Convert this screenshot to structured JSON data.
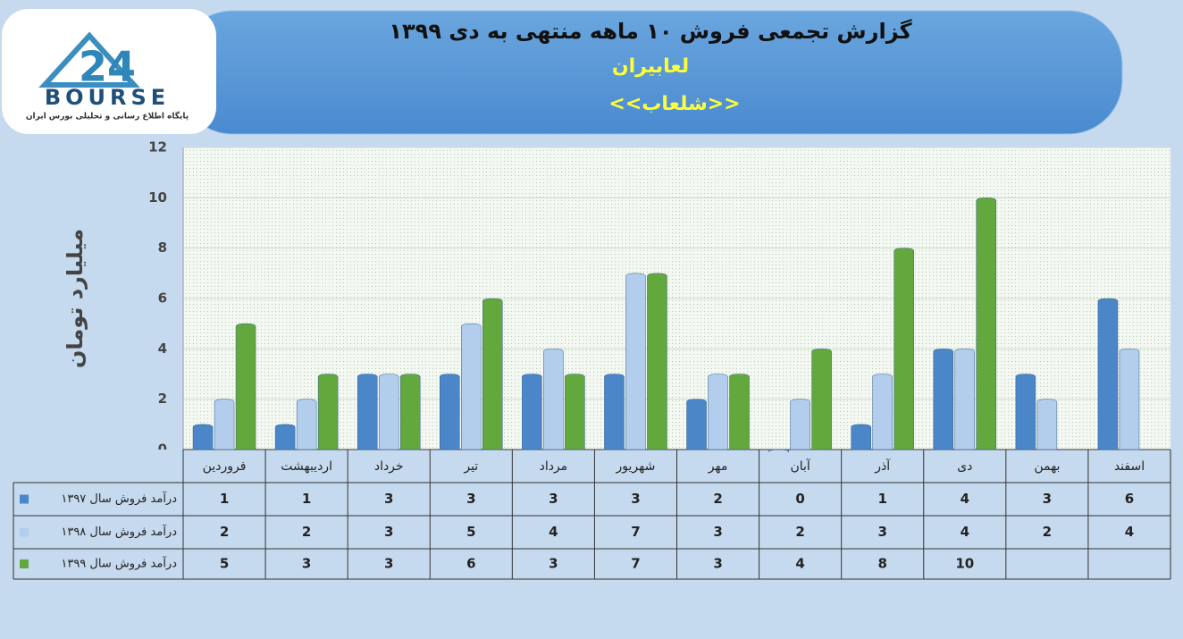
{
  "logo": {
    "mark": "24",
    "name": "BOURSE",
    "tagline": "پایگاه اطلاع رسانی و تحلیلی بورس ایران"
  },
  "chart_data": {
    "type": "bar",
    "title": "گزارش تجمعی فروش ۱۰ ماهه منتهی به دی ۱۳۹۹",
    "subtitle": "لعابیران",
    "subtitle2": "<<شلعاب>>",
    "y_label": "میلیارد تومان",
    "categories": [
      "فروردین",
      "اردیبهشت",
      "خرداد",
      "تیر",
      "مرداد",
      "شهریور",
      "مهر",
      "آبان",
      "آذر",
      "دی",
      "بهمن",
      "اسفند"
    ],
    "series": [
      {
        "name": "درآمد فروش سال ۱۳۹۷",
        "color": "#4a86c8",
        "values": [
          1,
          1,
          3,
          3,
          3,
          3,
          2,
          0,
          1,
          4,
          3,
          6
        ]
      },
      {
        "name": "درآمد فروش سال ۱۳۹۸",
        "color": "#b3cdec",
        "values": [
          2,
          2,
          3,
          5,
          4,
          7,
          3,
          2,
          3,
          4,
          2,
          4
        ]
      },
      {
        "name": "درآمد فروش سال ۱۳۹۹",
        "color": "#62a83c",
        "values": [
          5,
          3,
          3,
          6,
          3,
          7,
          3,
          4,
          8,
          10,
          null,
          null
        ]
      }
    ],
    "ylim": [
      0,
      12
    ],
    "yticks": [
      0,
      2,
      4,
      6,
      8,
      10,
      12
    ],
    "grid": true
  }
}
